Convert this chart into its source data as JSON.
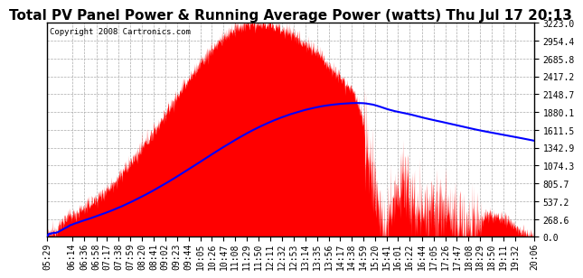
{
  "title": "Total PV Panel Power & Running Average Power (watts) Thu Jul 17 20:13",
  "copyright": "Copyright 2008 Cartronics.com",
  "y_tick_labels": [
    "0.0",
    "268.6",
    "537.2",
    "805.7",
    "1074.3",
    "1342.9",
    "1611.5",
    "1880.1",
    "2148.7",
    "2417.2",
    "2685.8",
    "2954.4",
    "3223.0"
  ],
  "y_tick_values": [
    0.0,
    268.6,
    537.2,
    805.7,
    1074.3,
    1342.9,
    1611.5,
    1880.1,
    2148.7,
    2417.2,
    2685.8,
    2954.4,
    3223.0
  ],
  "background_color": "#ffffff",
  "fill_color": "#ff0000",
  "line_color": "#0000ff",
  "grid_color": "#aaaaaa",
  "title_fontsize": 11,
  "copyright_fontsize": 6.5,
  "tick_fontsize": 7,
  "x_tick_labels": [
    "05:29",
    "06:14",
    "06:36",
    "06:58",
    "07:17",
    "07:38",
    "07:59",
    "08:20",
    "08:41",
    "09:02",
    "09:23",
    "09:44",
    "10:05",
    "10:26",
    "10:47",
    "11:08",
    "11:29",
    "11:50",
    "12:11",
    "12:32",
    "12:53",
    "13:14",
    "13:35",
    "13:56",
    "14:17",
    "14:38",
    "14:59",
    "15:20",
    "15:41",
    "16:01",
    "16:22",
    "16:44",
    "17:05",
    "17:26",
    "17:47",
    "18:08",
    "18:29",
    "18:50",
    "19:11",
    "19:32",
    "20:06"
  ]
}
